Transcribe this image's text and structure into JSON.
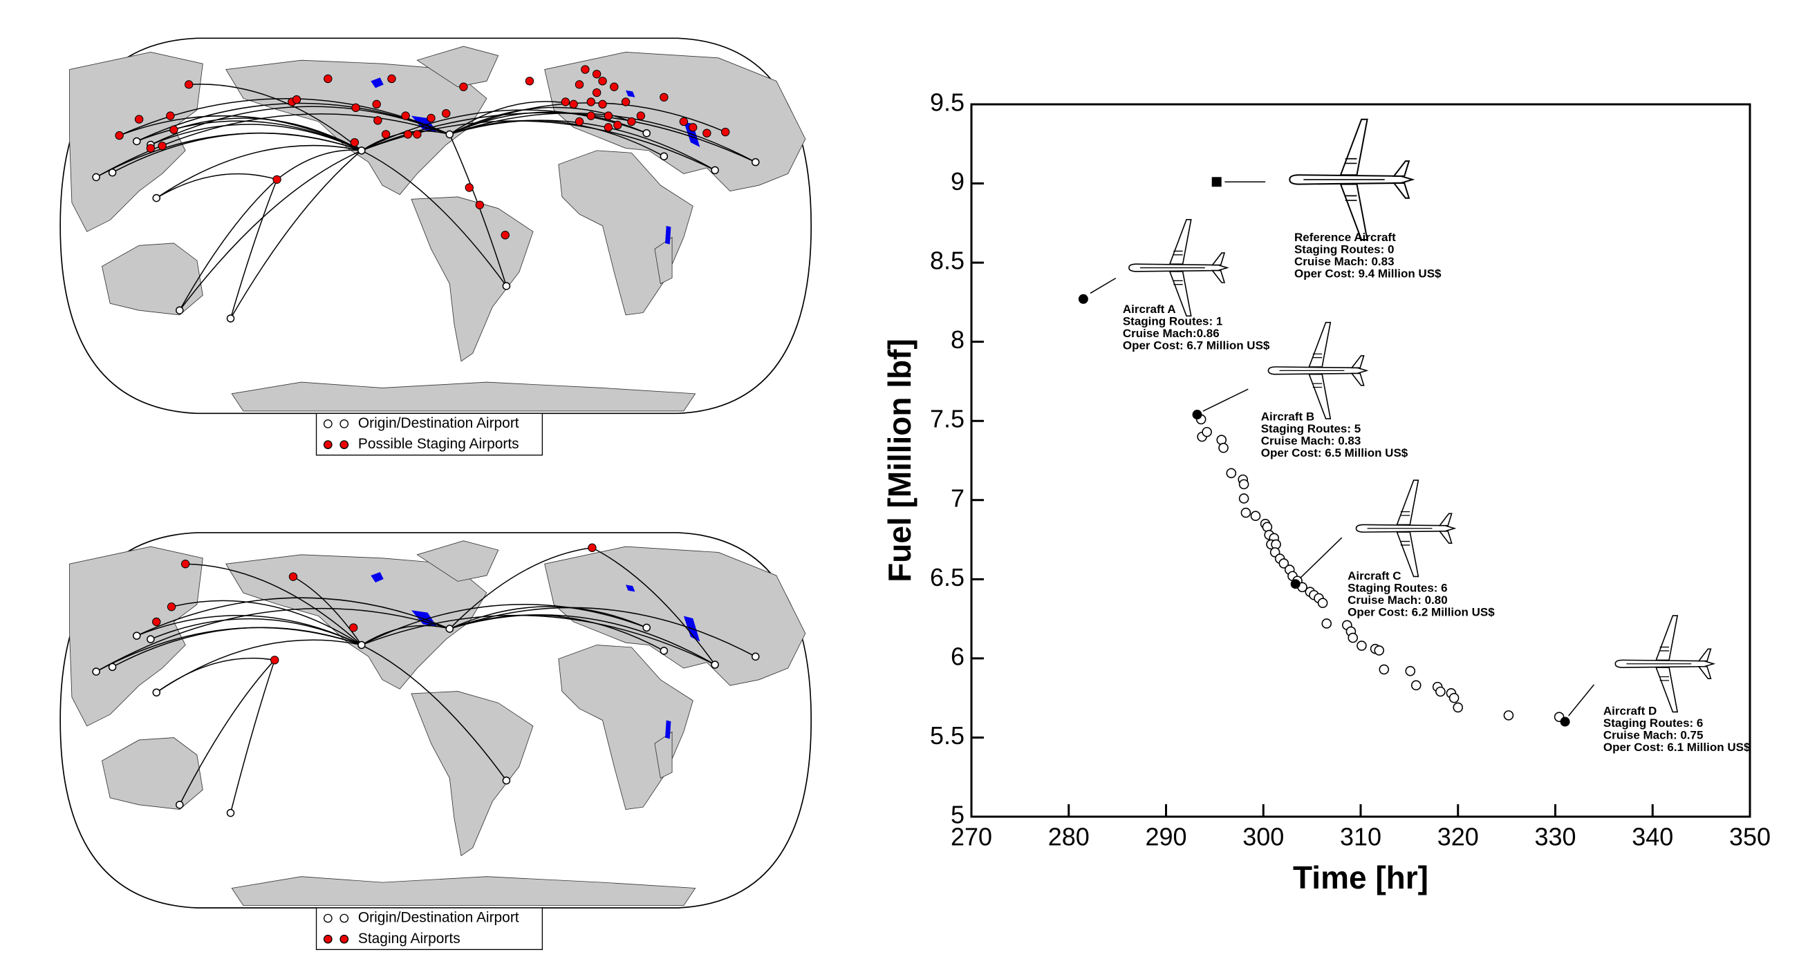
{
  "maps": [
    {
      "legend": [
        "Origin/Destination Airport",
        "Possible Staging Airports"
      ]
    },
    {
      "legend": [
        "Origin/Destination Airport",
        "Staging Airports"
      ]
    }
  ],
  "chart_data": {
    "type": "scatter",
    "xlabel": "Time [hr]",
    "ylabel": "Fuel [Million lbf]",
    "xlim": [
      270,
      350
    ],
    "xticks": [
      270,
      280,
      290,
      300,
      310,
      320,
      330,
      340,
      350
    ],
    "ylim": [
      5,
      9.5
    ],
    "yticks": [
      5,
      5.5,
      6,
      6.5,
      7,
      7.5,
      8,
      8.5,
      9,
      9.5
    ],
    "color": "#000000",
    "x": [
      293.6,
      293.7,
      294.2,
      295.7,
      295.9,
      296.7,
      297.9,
      298.0,
      298.0,
      298.2,
      299.2,
      300.2,
      300.4,
      300.6,
      301.1,
      300.8,
      301.3,
      301.2,
      301.7,
      302.1,
      302.7,
      303.0,
      303.5,
      304.0,
      304.8,
      305.2,
      305.7,
      306.1,
      306.5,
      308.6,
      309.0,
      309.2,
      310.1,
      311.5,
      311.9,
      312.4,
      315.1,
      315.7,
      317.9,
      318.2,
      319.3,
      319.6,
      320.0,
      325.2,
      330.4
    ],
    "values": [
      7.51,
      7.4,
      7.43,
      7.38,
      7.33,
      7.17,
      7.13,
      7.1,
      7.01,
      6.92,
      6.9,
      6.85,
      6.83,
      6.78,
      6.76,
      6.72,
      6.72,
      6.67,
      6.63,
      6.6,
      6.56,
      6.52,
      6.49,
      6.45,
      6.42,
      6.4,
      6.38,
      6.35,
      6.22,
      6.21,
      6.17,
      6.13,
      6.08,
      6.06,
      6.05,
      5.93,
      5.92,
      5.83,
      5.82,
      5.79,
      5.78,
      5.75,
      5.69,
      5.64,
      5.63
    ],
    "annotations": [
      {
        "x": 295.2,
        "y": 9.01,
        "marker": "square",
        "lines": [
          "Reference Aircraft",
          "Staging Routes: 0",
          "Cruise Mach: 0.83",
          "Oper Cost: 9.4 Million US$"
        ]
      },
      {
        "x": 281.5,
        "y": 8.27,
        "marker": "circle",
        "lines": [
          "Aircraft A",
          "Staging Routes: 1",
          "Cruise Mach:0.86",
          "Oper Cost: 6.7 Million US$"
        ]
      },
      {
        "x": 293.2,
        "y": 7.54,
        "marker": "circle",
        "lines": [
          "Aircraft B",
          "Staging Routes: 5",
          "Cruise Mach: 0.83",
          "Oper Cost: 6.5 Million US$"
        ]
      },
      {
        "x": 303.3,
        "y": 6.47,
        "marker": "circle",
        "lines": [
          "Aircraft C",
          "Staging Routes: 6",
          "Cruise Mach: 0.80",
          "Oper Cost: 6.2 Million US$"
        ]
      },
      {
        "x": 331.0,
        "y": 5.6,
        "marker": "circle",
        "lines": [
          "Aircraft D",
          "Staging Routes: 6",
          "Cruise Mach: 0.75",
          "Oper Cost: 6.1 Million US$"
        ]
      }
    ]
  }
}
